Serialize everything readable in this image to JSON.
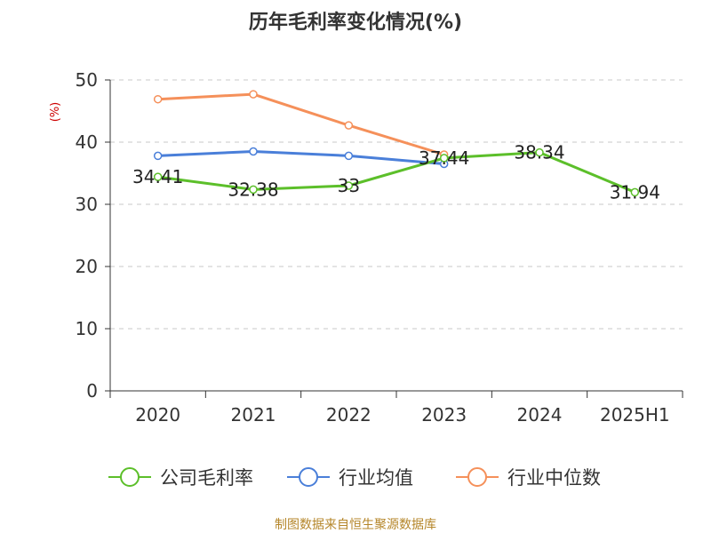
{
  "chart_data": {
    "type": "line",
    "title": "历年毛利率变化情况(%)",
    "ylabel": "(%)",
    "xlabel": "",
    "categories": [
      "2020",
      "2021",
      "2022",
      "2023",
      "2024",
      "2025H1"
    ],
    "ylim": [
      0,
      50
    ],
    "yticks": [
      0,
      10,
      20,
      30,
      40,
      50
    ],
    "grid": true,
    "legend_position": "bottom",
    "series": [
      {
        "name": "公司毛利率",
        "color": "#5cbf2a",
        "values": [
          34.41,
          32.38,
          33,
          37.44,
          38.34,
          31.94
        ],
        "labels": [
          "34.41",
          "32.38",
          "33",
          "37.44",
          "38.34",
          "31.94"
        ]
      },
      {
        "name": "行业均值",
        "color": "#4a7fd9",
        "values": [
          37.8,
          38.5,
          37.8,
          36.5,
          null,
          null
        ]
      },
      {
        "name": "行业中位数",
        "color": "#f5905a",
        "values": [
          46.9,
          47.7,
          42.7,
          38.0,
          null,
          null
        ]
      }
    ],
    "source": "制图数据来自恒生聚源数据库"
  }
}
